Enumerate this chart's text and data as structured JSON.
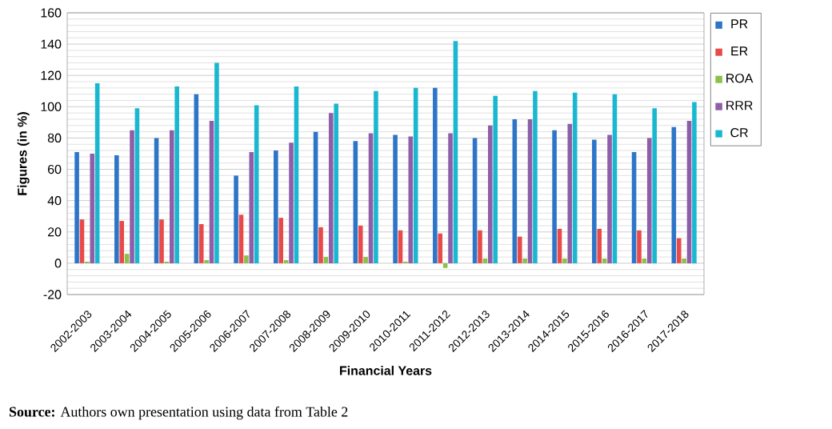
{
  "chart_data": {
    "type": "bar",
    "xlabel": "Financial Years",
    "ylabel": "Figures (in %)",
    "categories": [
      "2002-2003",
      "2003-2004",
      "2004-2005",
      "2005-2006",
      "2006-2007",
      "2007-2008",
      "2008-2009",
      "2009-2010",
      "2010-2011",
      "2011-2012",
      "2012-2013",
      "2013-2014",
      "2014-2015",
      "2015-2016",
      "2016-2017",
      "2017-2018"
    ],
    "series": [
      {
        "name": "PR",
        "color": "#2e75c8",
        "values": [
          71,
          69,
          80,
          108,
          56,
          72,
          84,
          78,
          82,
          112,
          80,
          92,
          85,
          79,
          71,
          87
        ]
      },
      {
        "name": "ER",
        "color": "#e84a4a",
        "values": [
          28,
          27,
          28,
          25,
          31,
          29,
          23,
          24,
          21,
          19,
          21,
          17,
          22,
          22,
          21,
          16
        ]
      },
      {
        "name": "ROA",
        "color": "#8cc04a",
        "values": [
          1,
          6,
          1,
          2,
          5,
          2,
          4,
          4,
          1,
          -3,
          3,
          3,
          3,
          3,
          3,
          3
        ]
      },
      {
        "name": "RRR",
        "color": "#8e5ea8",
        "values": [
          70,
          85,
          85,
          91,
          71,
          77,
          96,
          83,
          81,
          83,
          88,
          92,
          89,
          82,
          80,
          91
        ]
      },
      {
        "name": "CR",
        "color": "#1ab8d0",
        "values": [
          115,
          99,
          113,
          128,
          101,
          113,
          102,
          110,
          112,
          142,
          107,
          110,
          109,
          108,
          99,
          103
        ]
      }
    ],
    "ylim": [
      -20,
      160
    ],
    "yticks": [
      -20,
      0,
      20,
      40,
      60,
      80,
      100,
      120,
      140,
      160
    ],
    "grid": "y",
    "legend": "right",
    "annotations": [
      "**Source:** Authors own presentation using data from Table 2"
    ]
  }
}
